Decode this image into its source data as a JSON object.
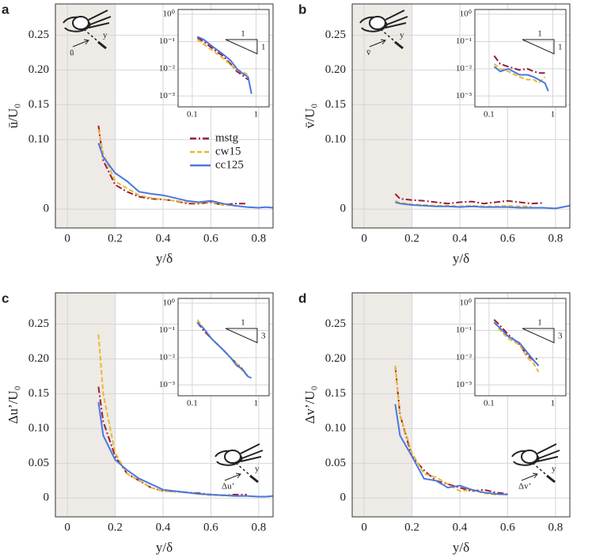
{
  "chart_data": [
    {
      "type": "line",
      "panel_label": "a",
      "ylabel": "ū/U₀",
      "xlabel": "y/δ",
      "icon_labels": [
        "y",
        "ū"
      ],
      "xlim": [
        -0.05,
        0.86
      ],
      "ylim": [
        -0.027,
        0.295
      ],
      "xticks": [
        0,
        0.2,
        0.4,
        0.6,
        0.8
      ],
      "yticks": [
        0,
        {
          "value": 0.1,
          "label": "0.10"
        },
        0.15,
        {
          "value": 0.2,
          "label": "0.20"
        },
        0.25
      ],
      "grid": true,
      "shade_xmax": 0.2,
      "legend": true,
      "legend_position": "center-right",
      "series": [
        {
          "name": "mstg",
          "color": "#9b1b3c",
          "style": "dashdot",
          "x": [
            0.13,
            0.15,
            0.2,
            0.25,
            0.3,
            0.35,
            0.4,
            0.45,
            0.5,
            0.55,
            0.6,
            0.65,
            0.7,
            0.75
          ],
          "values": [
            0.12,
            0.07,
            0.035,
            0.025,
            0.018,
            0.015,
            0.014,
            0.012,
            0.008,
            0.008,
            0.01,
            0.006,
            0.008,
            0.008
          ]
        },
        {
          "name": "cw15",
          "color": "#e8b830",
          "style": "dashed",
          "x": [
            0.13,
            0.15,
            0.2,
            0.25,
            0.3,
            0.35,
            0.4,
            0.45,
            0.5,
            0.55,
            0.6,
            0.65,
            0.7
          ],
          "values": [
            0.115,
            0.08,
            0.04,
            0.03,
            0.02,
            0.016,
            0.014,
            0.012,
            0.01,
            0.009,
            0.011,
            0.006,
            0.005
          ]
        },
        {
          "name": "cc125",
          "color": "#4a78e0",
          "style": "solid",
          "x": [
            0.13,
            0.15,
            0.2,
            0.25,
            0.3,
            0.35,
            0.4,
            0.45,
            0.5,
            0.55,
            0.6,
            0.65,
            0.7,
            0.75,
            0.8,
            0.83,
            0.86
          ],
          "values": [
            0.095,
            0.075,
            0.052,
            0.04,
            0.025,
            0.022,
            0.02,
            0.016,
            0.012,
            0.01,
            0.012,
            0.008,
            0.005,
            0.003,
            0.002,
            0.003,
            0.002
          ]
        }
      ],
      "inset": {
        "log": true,
        "xlim": [
          0.06,
          1.6
        ],
        "ylim": [
          0.0004,
          1.5
        ],
        "xticks": [
          0.1,
          1
        ],
        "yticks": [
          {
            "value": 1,
            "label": "10⁰"
          },
          {
            "value": 0.1,
            "label": "10⁻¹"
          },
          {
            "value": 0.01,
            "label": "10⁻²"
          },
          {
            "value": 0.001,
            "label": "10⁻³"
          }
        ],
        "slope_labels": [
          "1",
          "1"
        ],
        "series": [
          {
            "x": [
              0.12,
              0.15,
              0.2,
              0.3,
              0.4,
              0.5,
              0.6,
              0.75
            ],
            "values": [
              0.14,
              0.1,
              0.06,
              0.03,
              0.015,
              0.008,
              0.006,
              0.004
            ]
          },
          {
            "x": [
              0.12,
              0.15,
              0.2,
              0.3,
              0.4,
              0.5,
              0.6,
              0.75
            ],
            "values": [
              0.12,
              0.08,
              0.05,
              0.025,
              0.014,
              0.009,
              0.008,
              0.006
            ]
          },
          {
            "x": [
              0.12,
              0.15,
              0.2,
              0.3,
              0.4,
              0.5,
              0.6,
              0.75,
              0.85
            ],
            "values": [
              0.15,
              0.12,
              0.07,
              0.035,
              0.02,
              0.01,
              0.007,
              0.005,
              0.0012
            ]
          }
        ]
      }
    },
    {
      "type": "line",
      "panel_label": "b",
      "ylabel": "v̄/U₀",
      "xlabel": "y/δ",
      "icon_labels": [
        "y",
        "v̄"
      ],
      "xlim": [
        -0.05,
        0.86
      ],
      "ylim": [
        -0.027,
        0.295
      ],
      "xticks": [
        0,
        0.2,
        0.4,
        0.6,
        0.8
      ],
      "yticks": [
        0,
        {
          "value": 0.1,
          "label": "0.10"
        },
        0.15,
        {
          "value": 0.2,
          "label": "0.20"
        },
        0.25
      ],
      "grid": true,
      "shade_xmax": 0.2,
      "legend": false,
      "legend_position": "center-right",
      "series": [
        {
          "name": "mstg",
          "color": "#9b1b3c",
          "style": "dashdot",
          "x": [
            0.13,
            0.15,
            0.2,
            0.25,
            0.3,
            0.35,
            0.4,
            0.45,
            0.5,
            0.55,
            0.6,
            0.65,
            0.7,
            0.75
          ],
          "values": [
            0.022,
            0.015,
            0.013,
            0.012,
            0.01,
            0.008,
            0.01,
            0.011,
            0.008,
            0.01,
            0.012,
            0.01,
            0.008,
            0.009
          ]
        },
        {
          "name": "cw15",
          "color": "#e8b830",
          "style": "dashed",
          "x": [
            0.13,
            0.15,
            0.2,
            0.25,
            0.3,
            0.35,
            0.4,
            0.45,
            0.5,
            0.55,
            0.6,
            0.65,
            0.7
          ],
          "values": [
            0.012,
            0.009,
            0.007,
            0.006,
            0.005,
            0.005,
            0.004,
            0.005,
            0.004,
            0.004,
            0.005,
            0.004,
            0.004
          ]
        },
        {
          "name": "cc125",
          "color": "#4a78e0",
          "style": "solid",
          "x": [
            0.13,
            0.15,
            0.2,
            0.25,
            0.3,
            0.35,
            0.4,
            0.45,
            0.5,
            0.55,
            0.6,
            0.65,
            0.7,
            0.75,
            0.8,
            0.83,
            0.86
          ],
          "values": [
            0.01,
            0.008,
            0.006,
            0.005,
            0.004,
            0.004,
            0.003,
            0.004,
            0.003,
            0.003,
            0.003,
            0.002,
            0.002,
            0.002,
            0.001,
            0.003,
            0.005
          ]
        }
      ],
      "inset": {
        "log": true,
        "xlim": [
          0.06,
          1.6
        ],
        "ylim": [
          0.0004,
          1.5
        ],
        "xticks": [
          0.1,
          1
        ],
        "yticks": [
          {
            "value": 1,
            "label": "10⁰"
          },
          {
            "value": 0.1,
            "label": "10⁻¹"
          },
          {
            "value": 0.01,
            "label": "10⁻²"
          },
          {
            "value": 0.001,
            "label": "10⁻³"
          }
        ],
        "slope_labels": [
          "1",
          "1"
        ],
        "series": [
          {
            "x": [
              0.12,
              0.15,
              0.2,
              0.3,
              0.4,
              0.5,
              0.6,
              0.75
            ],
            "values": [
              0.03,
              0.015,
              0.012,
              0.009,
              0.01,
              0.008,
              0.007,
              0.007
            ]
          },
          {
            "x": [
              0.12,
              0.15,
              0.2,
              0.3,
              0.4,
              0.5,
              0.6,
              0.75
            ],
            "values": [
              0.015,
              0.01,
              0.008,
              0.005,
              0.004,
              0.004,
              0.003,
              0.005
            ]
          },
          {
            "x": [
              0.12,
              0.15,
              0.2,
              0.3,
              0.4,
              0.5,
              0.6,
              0.75,
              0.85
            ],
            "values": [
              0.012,
              0.008,
              0.01,
              0.006,
              0.006,
              0.005,
              0.004,
              0.003,
              0.0015
            ]
          }
        ]
      }
    },
    {
      "type": "line",
      "panel_label": "c",
      "ylabel": "Δu’/U₀",
      "xlabel": "y/δ",
      "icon_labels": [
        "y",
        "Δu’"
      ],
      "xlim": [
        -0.05,
        0.86
      ],
      "ylim": [
        -0.027,
        0.295
      ],
      "xticks": [
        0,
        0.2,
        0.4,
        0.6,
        0.8
      ],
      "yticks": [
        0,
        0.05,
        {
          "value": 0.1,
          "label": "0.10"
        },
        0.15,
        {
          "value": 0.2,
          "label": "0.20"
        },
        0.25
      ],
      "grid": true,
      "shade_xmax": 0.2,
      "legend": false,
      "legend_position": "center-right",
      "series": [
        {
          "name": "mstg",
          "color": "#9b1b3c",
          "style": "dashdot",
          "x": [
            0.13,
            0.15,
            0.2,
            0.25,
            0.3,
            0.35,
            0.4,
            0.45,
            0.5,
            0.55,
            0.6,
            0.65,
            0.7,
            0.75
          ],
          "values": [
            0.16,
            0.11,
            0.06,
            0.035,
            0.025,
            0.015,
            0.01,
            0.01,
            0.008,
            0.007,
            0.005,
            0.004,
            0.005,
            0.005
          ]
        },
        {
          "name": "cw15",
          "color": "#e8b830",
          "style": "dashed",
          "x": [
            0.13,
            0.15,
            0.2,
            0.25,
            0.3,
            0.35,
            0.4,
            0.45,
            0.5,
            0.55,
            0.6,
            0.65,
            0.7
          ],
          "values": [
            0.235,
            0.15,
            0.065,
            0.035,
            0.025,
            0.015,
            0.01,
            0.009,
            0.008,
            0.006,
            0.004,
            0.004,
            0.004
          ]
        },
        {
          "name": "cc125",
          "color": "#4a78e0",
          "style": "solid",
          "x": [
            0.13,
            0.15,
            0.2,
            0.25,
            0.3,
            0.35,
            0.4,
            0.45,
            0.5,
            0.55,
            0.6,
            0.65,
            0.7,
            0.75,
            0.8,
            0.83,
            0.86
          ],
          "values": [
            0.138,
            0.09,
            0.055,
            0.04,
            0.028,
            0.02,
            0.012,
            0.01,
            0.008,
            0.006,
            0.005,
            0.004,
            0.003,
            0.003,
            0.002,
            0.002,
            0.003
          ]
        }
      ],
      "inset": {
        "log": true,
        "xlim": [
          0.06,
          1.6
        ],
        "ylim": [
          0.0004,
          1.5
        ],
        "xticks": [
          0.1,
          1
        ],
        "yticks": [
          {
            "value": 1,
            "label": "10⁰"
          },
          {
            "value": 0.1,
            "label": "10⁻¹"
          },
          {
            "value": 0.01,
            "label": "10⁻²"
          },
          {
            "value": 0.001,
            "label": "10⁻³"
          }
        ],
        "slope_labels": [
          "1",
          "3"
        ],
        "series": [
          {
            "x": [
              0.12,
              0.15,
              0.2,
              0.3,
              0.4,
              0.5,
              0.6,
              0.75
            ],
            "values": [
              0.2,
              0.1,
              0.05,
              0.02,
              0.01,
              0.006,
              0.004,
              0.002
            ]
          },
          {
            "x": [
              0.12,
              0.15,
              0.2,
              0.3,
              0.4,
              0.5,
              0.6,
              0.75
            ],
            "values": [
              0.25,
              0.12,
              0.05,
              0.02,
              0.01,
              0.006,
              0.0035,
              0.002
            ]
          },
          {
            "x": [
              0.12,
              0.15,
              0.2,
              0.3,
              0.4,
              0.5,
              0.6,
              0.75,
              0.85
            ],
            "values": [
              0.2,
              0.12,
              0.05,
              0.02,
              0.01,
              0.005,
              0.004,
              0.002,
              0.0018
            ]
          }
        ]
      }
    },
    {
      "type": "line",
      "panel_label": "d",
      "ylabel": "Δv’/U₀",
      "xlabel": "y/δ",
      "icon_labels": [
        "y",
        "Δv’"
      ],
      "xlim": [
        -0.05,
        0.86
      ],
      "ylim": [
        -0.027,
        0.295
      ],
      "xticks": [
        0,
        0.2,
        0.4,
        0.6,
        0.8
      ],
      "yticks": [
        0,
        0.05,
        {
          "value": 0.1,
          "label": "0.10"
        },
        0.15,
        {
          "value": 0.2,
          "label": "0.20"
        },
        0.25
      ],
      "grid": true,
      "shade_xmax": 0.2,
      "legend": false,
      "legend_position": "center-right",
      "series": [
        {
          "name": "mstg",
          "color": "#9b1b3c",
          "style": "dashdot",
          "x": [
            0.13,
            0.15,
            0.2,
            0.25,
            0.3,
            0.35,
            0.4,
            0.45,
            0.5,
            0.55,
            0.6
          ],
          "values": [
            0.19,
            0.12,
            0.06,
            0.04,
            0.025,
            0.02,
            0.015,
            0.01,
            0.012,
            0.008,
            0.006
          ]
        },
        {
          "name": "cw15",
          "color": "#e8b830",
          "style": "dashed",
          "x": [
            0.13,
            0.15,
            0.2,
            0.25,
            0.3,
            0.35,
            0.4,
            0.45,
            0.5,
            0.55,
            0.6
          ],
          "values": [
            0.19,
            0.12,
            0.065,
            0.035,
            0.03,
            0.02,
            0.01,
            0.012,
            0.007,
            0.005,
            0.006
          ]
        },
        {
          "name": "cc125",
          "color": "#4a78e0",
          "style": "solid",
          "x": [
            0.13,
            0.15,
            0.2,
            0.25,
            0.3,
            0.35,
            0.4,
            0.45,
            0.5,
            0.55,
            0.6
          ],
          "values": [
            0.135,
            0.09,
            0.06,
            0.028,
            0.025,
            0.015,
            0.018,
            0.012,
            0.008,
            0.006,
            0.005
          ]
        }
      ],
      "inset": {
        "log": true,
        "xlim": [
          0.06,
          1.6
        ],
        "ylim": [
          0.0004,
          1.5
        ],
        "xticks": [
          0.1,
          1
        ],
        "yticks": [
          {
            "value": 1,
            "label": "10⁰"
          },
          {
            "value": 0.1,
            "label": "10⁻¹"
          },
          {
            "value": 0.01,
            "label": "10⁻²"
          },
          {
            "value": 0.001,
            "label": "10⁻³"
          }
        ],
        "slope_labels": [
          "1",
          "3"
        ],
        "series": [
          {
            "x": [
              0.12,
              0.15,
              0.2,
              0.3,
              0.4,
              0.5,
              0.6
            ],
            "values": [
              0.25,
              0.15,
              0.07,
              0.03,
              0.012,
              0.008,
              0.01
            ]
          },
          {
            "x": [
              0.12,
              0.15,
              0.2,
              0.3,
              0.4,
              0.5,
              0.6
            ],
            "values": [
              0.2,
              0.1,
              0.05,
              0.03,
              0.01,
              0.006,
              0.003
            ]
          },
          {
            "x": [
              0.12,
              0.15,
              0.2,
              0.3,
              0.4,
              0.5,
              0.6
            ],
            "values": [
              0.2,
              0.12,
              0.06,
              0.035,
              0.015,
              0.008,
              0.005
            ]
          }
        ]
      }
    }
  ]
}
